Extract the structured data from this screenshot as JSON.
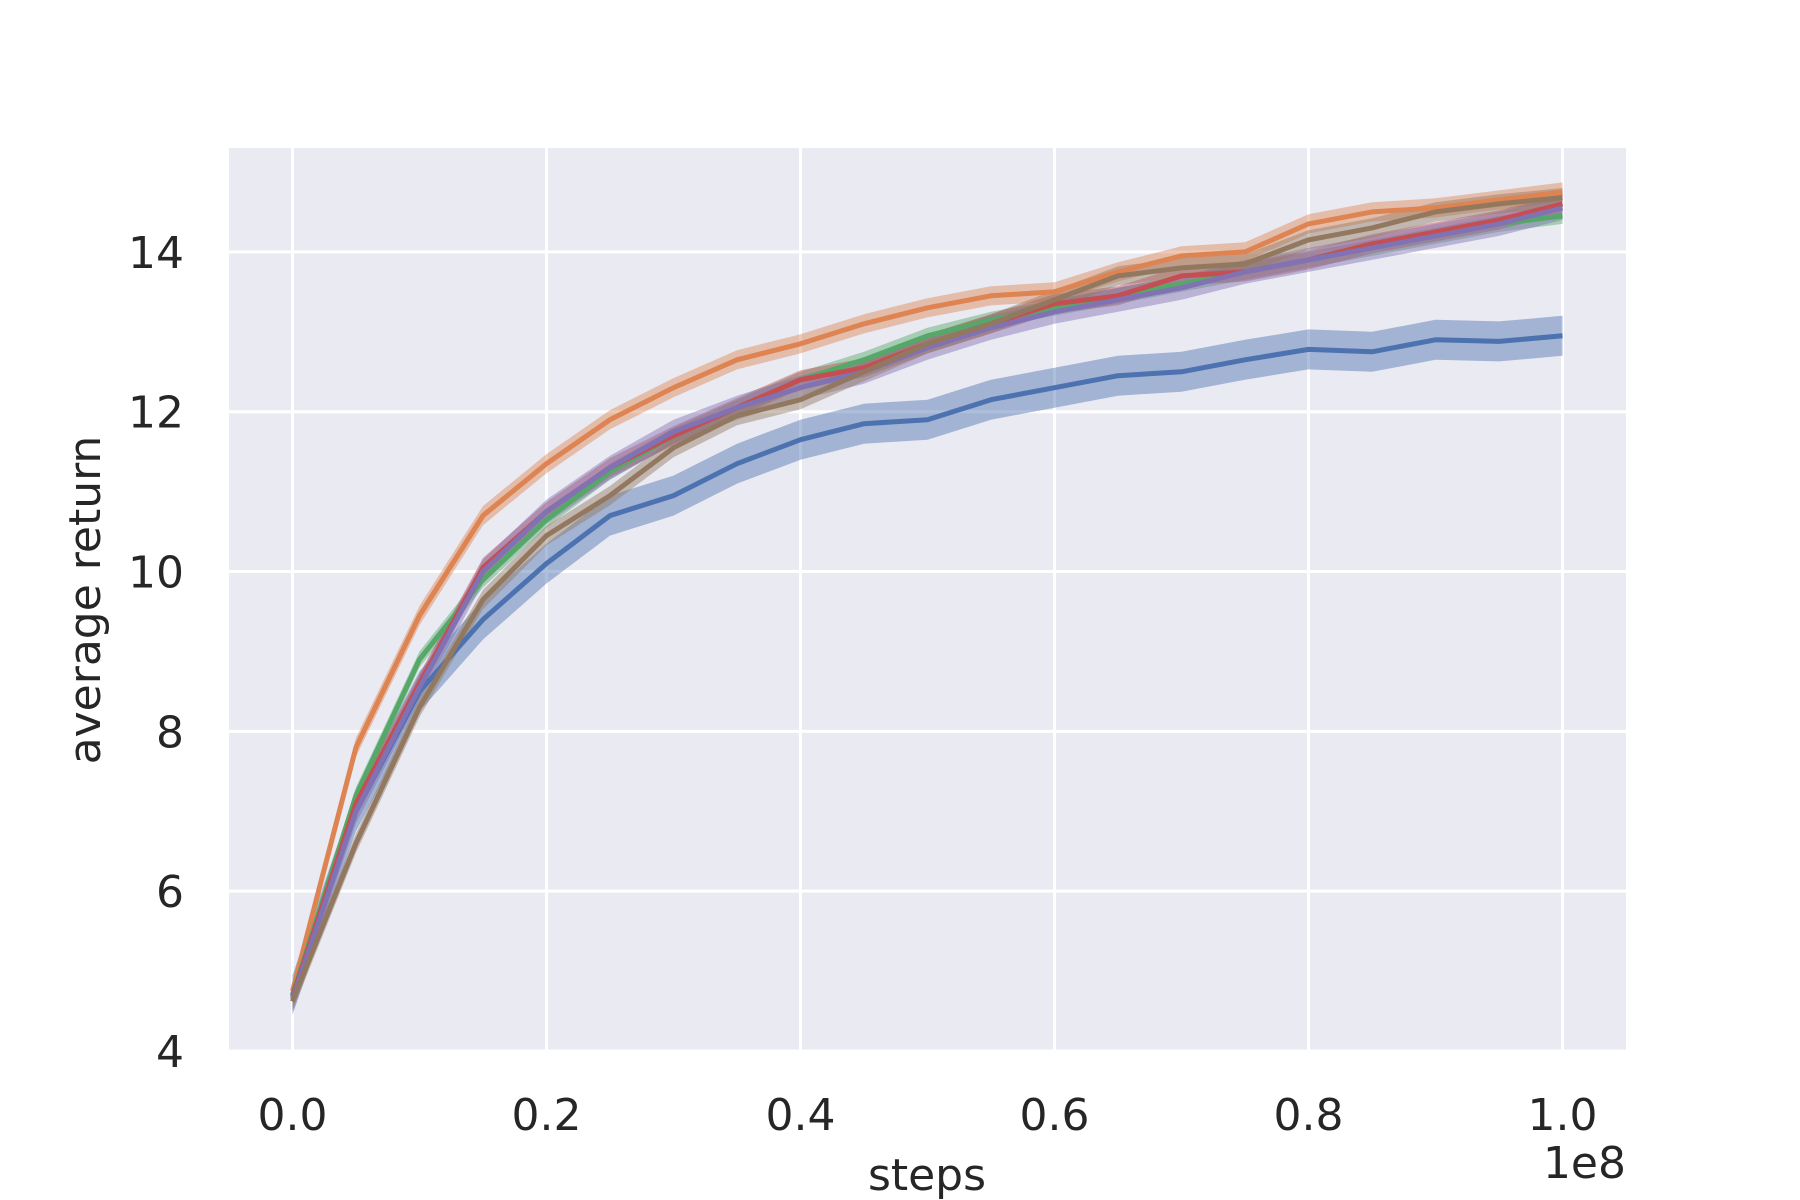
{
  "chart_data": {
    "type": "line",
    "title": "",
    "xlabel": "steps",
    "ylabel": "average return",
    "x_offset_text": "1e8",
    "xlim": [
      -0.05,
      1.05
    ],
    "ylim": [
      4,
      15.3
    ],
    "x_ticks": [
      0.0,
      0.2,
      0.4,
      0.6,
      0.8,
      1.0
    ],
    "x_tick_labels": [
      "0.0",
      "0.2",
      "0.4",
      "0.6",
      "0.8",
      "1.0"
    ],
    "y_ticks": [
      4,
      6,
      8,
      10,
      12,
      14
    ],
    "y_tick_labels": [
      "4",
      "6",
      "8",
      "10",
      "12",
      "14"
    ],
    "grid": true,
    "background": "#eaeaf2",
    "legend": "none",
    "x": [
      0.0,
      0.05,
      0.1,
      0.15,
      0.2,
      0.25,
      0.3,
      0.35,
      0.4,
      0.45,
      0.5,
      0.55,
      0.6,
      0.65,
      0.7,
      0.75,
      0.8,
      0.85,
      0.9,
      0.95,
      1.0
    ],
    "series": [
      {
        "color": "#4c72b0",
        "values": [
          4.7,
          7.0,
          8.5,
          9.4,
          10.1,
          10.7,
          10.95,
          11.35,
          11.65,
          11.85,
          11.9,
          12.15,
          12.3,
          12.45,
          12.5,
          12.65,
          12.78,
          12.75,
          12.9,
          12.88,
          12.95
        ],
        "band": 0.25
      },
      {
        "color": "#dd8452",
        "values": [
          4.75,
          7.8,
          9.45,
          10.7,
          11.35,
          11.9,
          12.3,
          12.65,
          12.85,
          13.1,
          13.3,
          13.45,
          13.5,
          13.75,
          13.95,
          14.0,
          14.35,
          14.5,
          14.55,
          14.65,
          14.75
        ],
        "band": 0.12
      },
      {
        "color": "#55a868",
        "values": [
          4.7,
          7.2,
          8.9,
          9.9,
          10.65,
          11.25,
          11.7,
          12.05,
          12.4,
          12.65,
          12.95,
          13.15,
          13.3,
          13.45,
          13.6,
          13.75,
          13.9,
          14.05,
          14.2,
          14.35,
          14.45
        ],
        "band": 0.1
      },
      {
        "color": "#c44e52",
        "values": [
          4.68,
          7.1,
          8.6,
          10.05,
          10.75,
          11.3,
          11.7,
          12.05,
          12.4,
          12.55,
          12.85,
          13.1,
          13.35,
          13.45,
          13.7,
          13.75,
          13.9,
          14.1,
          14.25,
          14.4,
          14.6
        ],
        "band": 0.12
      },
      {
        "color": "#8172b3",
        "values": [
          4.65,
          7.0,
          8.55,
          10.0,
          10.75,
          11.3,
          11.75,
          12.05,
          12.3,
          12.5,
          12.8,
          13.05,
          13.25,
          13.4,
          13.55,
          13.75,
          13.9,
          14.05,
          14.2,
          14.35,
          14.55
        ],
        "band": 0.15
      },
      {
        "color": "#937860",
        "values": [
          4.62,
          6.6,
          8.3,
          9.65,
          10.45,
          10.95,
          11.55,
          11.95,
          12.15,
          12.5,
          12.85,
          13.1,
          13.4,
          13.7,
          13.8,
          13.85,
          14.15,
          14.3,
          14.5,
          14.6,
          14.68
        ],
        "band": 0.12
      }
    ]
  }
}
